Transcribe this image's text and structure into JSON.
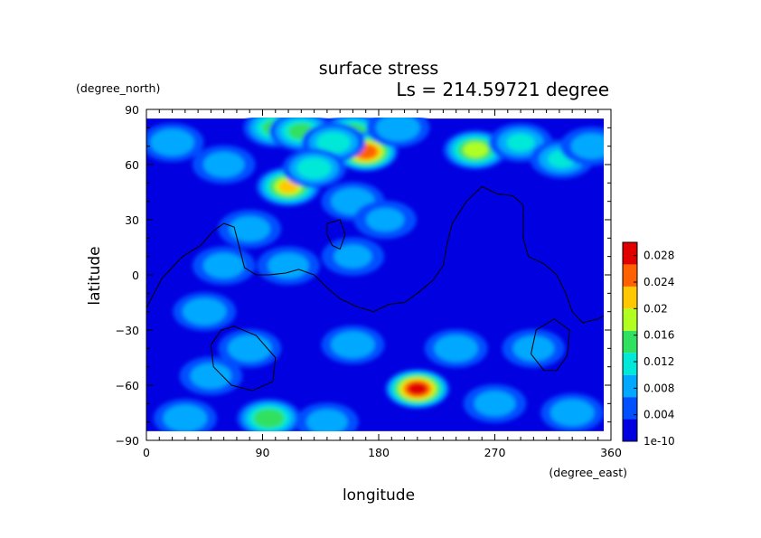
{
  "chart_data": {
    "type": "heatmap",
    "title": "surface stress",
    "subtitle": "Ls = 214.59721 degree",
    "xlabel": "longitude",
    "ylabel": "latitude",
    "x_unit": "(degree_east)",
    "y_unit": "(degree_north)",
    "xlim": [
      0,
      360
    ],
    "ylim": [
      -90,
      90
    ],
    "x_ticks": [
      "0",
      "90",
      "180",
      "270",
      "360"
    ],
    "y_ticks": [
      "90",
      "60",
      "30",
      "0",
      "−30",
      "−60",
      "−90"
    ],
    "data_extent": {
      "lon": [
        0,
        355
      ],
      "lat": [
        -85,
        85
      ]
    },
    "colorbar": {
      "min": 1e-10,
      "max": 0.03,
      "labels": [
        "0.028",
        "0.024",
        "0.02",
        "0.016",
        "0.012",
        "0.008",
        "0.004",
        "1e-10"
      ],
      "colors": [
        "#0000e0",
        "#0050ff",
        "#00a8ff",
        "#00e8d8",
        "#30e060",
        "#b0ff20",
        "#ffc800",
        "#ff6000",
        "#e00000"
      ]
    },
    "background_level": 0.003,
    "features": [
      {
        "lon": 100,
        "lat": 80,
        "value": 0.014
      },
      {
        "lon": 120,
        "lat": 78,
        "value": 0.014
      },
      {
        "lon": 160,
        "lat": 77,
        "value": 0.016
      },
      {
        "lon": 170,
        "lat": 67,
        "value": 0.026
      },
      {
        "lon": 145,
        "lat": 72,
        "value": 0.012
      },
      {
        "lon": 110,
        "lat": 48,
        "value": 0.02
      },
      {
        "lon": 130,
        "lat": 58,
        "value": 0.012
      },
      {
        "lon": 255,
        "lat": 68,
        "value": 0.018
      },
      {
        "lon": 290,
        "lat": 72,
        "value": 0.01
      },
      {
        "lon": 322,
        "lat": 63,
        "value": 0.01
      },
      {
        "lon": 345,
        "lat": 70,
        "value": 0.008
      },
      {
        "lon": 20,
        "lat": 72,
        "value": 0.009
      },
      {
        "lon": 60,
        "lat": 60,
        "value": 0.008
      },
      {
        "lon": 195,
        "lat": 80,
        "value": 0.009
      },
      {
        "lon": 160,
        "lat": 40,
        "value": 0.009
      },
      {
        "lon": 185,
        "lat": 30,
        "value": 0.007
      },
      {
        "lon": 80,
        "lat": 25,
        "value": 0.008
      },
      {
        "lon": 60,
        "lat": 5,
        "value": 0.008
      },
      {
        "lon": 110,
        "lat": 5,
        "value": 0.008
      },
      {
        "lon": 160,
        "lat": 10,
        "value": 0.007
      },
      {
        "lon": 45,
        "lat": -20,
        "value": 0.009
      },
      {
        "lon": 80,
        "lat": -40,
        "value": 0.009
      },
      {
        "lon": 50,
        "lat": -55,
        "value": 0.008
      },
      {
        "lon": 160,
        "lat": -38,
        "value": 0.009
      },
      {
        "lon": 240,
        "lat": -40,
        "value": 0.009
      },
      {
        "lon": 300,
        "lat": -40,
        "value": 0.008
      },
      {
        "lon": 210,
        "lat": -62,
        "value": 0.028
      },
      {
        "lon": 95,
        "lat": -78,
        "value": 0.016
      },
      {
        "lon": 30,
        "lat": -78,
        "value": 0.009
      },
      {
        "lon": 270,
        "lat": -70,
        "value": 0.008
      },
      {
        "lon": 330,
        "lat": -75,
        "value": 0.009
      },
      {
        "lon": 140,
        "lat": -80,
        "value": 0.008
      }
    ],
    "contours": [
      [
        [
          0,
          -18
        ],
        [
          12,
          -2
        ],
        [
          28,
          10
        ],
        [
          42,
          16
        ],
        [
          52,
          24
        ],
        [
          60,
          28
        ],
        [
          68,
          26
        ],
        [
          72,
          15
        ],
        [
          76,
          4
        ],
        [
          85,
          0
        ],
        [
          95,
          0
        ],
        [
          108,
          1
        ],
        [
          118,
          3
        ],
        [
          130,
          0
        ],
        [
          140,
          -7
        ],
        [
          150,
          -13
        ],
        [
          162,
          -17
        ],
        [
          176,
          -20
        ],
        [
          188,
          -16
        ],
        [
          200,
          -15
        ],
        [
          210,
          -10
        ],
        [
          222,
          -3
        ],
        [
          230,
          5
        ],
        [
          233,
          17
        ],
        [
          237,
          28
        ],
        [
          248,
          40
        ],
        [
          260,
          48
        ],
        [
          272,
          44
        ],
        [
          284,
          43
        ],
        [
          292,
          38
        ],
        [
          292,
          20
        ],
        [
          296,
          10
        ],
        [
          308,
          6
        ],
        [
          318,
          0
        ],
        [
          325,
          -10
        ],
        [
          330,
          -20
        ],
        [
          338,
          -26
        ],
        [
          350,
          -24
        ],
        [
          360,
          -20
        ]
      ],
      [
        [
          140,
          28
        ],
        [
          150,
          30
        ],
        [
          154,
          22
        ],
        [
          150,
          14
        ],
        [
          144,
          16
        ],
        [
          140,
          22
        ],
        [
          140,
          28
        ]
      ],
      [
        [
          68,
          -28
        ],
        [
          85,
          -33
        ],
        [
          100,
          -45
        ],
        [
          98,
          -58
        ],
        [
          82,
          -63
        ],
        [
          66,
          -60
        ],
        [
          52,
          -50
        ],
        [
          50,
          -38
        ],
        [
          58,
          -30
        ],
        [
          68,
          -28
        ]
      ],
      [
        [
          318,
          -52
        ],
        [
          326,
          -44
        ],
        [
          328,
          -30
        ],
        [
          316,
          -24
        ],
        [
          302,
          -30
        ],
        [
          298,
          -43
        ],
        [
          308,
          -52
        ],
        [
          318,
          -52
        ]
      ]
    ]
  }
}
